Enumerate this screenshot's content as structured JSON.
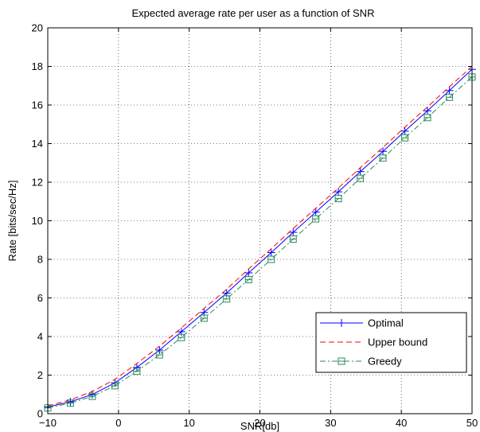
{
  "chart_data": {
    "type": "line",
    "title": "Expected average rate per user as a function of SNR",
    "xlabel": "SNR[db]",
    "ylabel": "Rate [bits/sec/Hz]",
    "xlim": [
      -10,
      50
    ],
    "ylim": [
      0,
      20
    ],
    "xticks": [
      -10,
      0,
      10,
      20,
      30,
      40,
      50
    ],
    "yticks": [
      0,
      2,
      4,
      6,
      8,
      10,
      12,
      14,
      16,
      18,
      20
    ],
    "xtick_labels": [
      "−10",
      "0",
      "10",
      "20",
      "30",
      "40",
      "50"
    ],
    "ytick_labels": [
      "0",
      "2",
      "4",
      "6",
      "8",
      "10",
      "12",
      "14",
      "16",
      "18",
      "20"
    ],
    "grid": true,
    "legend_position": "bottom-right",
    "series": [
      {
        "name": "Optimal",
        "color": "#0000ff",
        "dash": "solid",
        "marker": "plus",
        "x": [
          -10,
          -6.8,
          -3.7,
          -0.5,
          2.6,
          5.8,
          8.9,
          12.1,
          15.3,
          18.4,
          21.6,
          24.7,
          27.9,
          31.1,
          34.2,
          37.4,
          40.5,
          43.7,
          46.8,
          50
        ],
        "y": [
          0.35,
          0.62,
          1.0,
          1.6,
          2.4,
          3.3,
          4.25,
          5.25,
          6.25,
          7.3,
          8.35,
          9.4,
          10.45,
          11.5,
          12.55,
          13.6,
          14.65,
          15.7,
          16.75,
          17.85
        ]
      },
      {
        "name": "Upper bound",
        "color": "#ff0000",
        "dash": "dashed",
        "marker": "none",
        "x": [
          -10,
          -6.8,
          -3.7,
          -0.5,
          2.6,
          5.8,
          8.9,
          12.1,
          15.3,
          18.4,
          21.6,
          24.7,
          27.9,
          31.1,
          34.2,
          37.4,
          40.5,
          43.7,
          46.8,
          50
        ],
        "y": [
          0.4,
          0.72,
          1.15,
          1.78,
          2.6,
          3.5,
          4.45,
          5.45,
          6.45,
          7.5,
          8.55,
          9.6,
          10.65,
          11.7,
          12.75,
          13.8,
          14.85,
          15.9,
          16.95,
          18.0
        ]
      },
      {
        "name": "Greedy",
        "color": "#2e8b57",
        "dash": "dashdot",
        "marker": "square",
        "x": [
          -10,
          -6.8,
          -3.7,
          -0.5,
          2.6,
          5.8,
          8.9,
          12.1,
          15.3,
          18.4,
          21.6,
          24.7,
          27.9,
          31.1,
          34.2,
          37.4,
          40.5,
          43.7,
          46.8,
          50
        ],
        "y": [
          0.3,
          0.55,
          0.9,
          1.45,
          2.2,
          3.05,
          3.95,
          4.95,
          5.95,
          6.95,
          8.0,
          9.05,
          10.1,
          11.15,
          12.2,
          13.25,
          14.3,
          15.35,
          16.4,
          17.45
        ]
      }
    ]
  }
}
